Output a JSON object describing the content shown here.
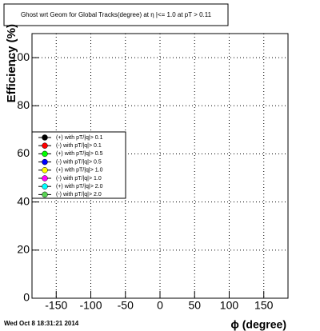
{
  "chart_data": {
    "type": "scatter",
    "title": "Ghost wrt Geom for Global Tracks(degree) at η |<= 1.0 at pT > 0.11",
    "x_label": "ϕ (degree)",
    "y_label": "Efficiency (%)",
    "timestamp": "Wed Oct  8 18:31:21 2014",
    "xlim": [
      -185,
      185
    ],
    "xticks": [
      -150,
      -100,
      -50,
      0,
      50,
      100,
      150
    ],
    "ylim": [
      0,
      110
    ],
    "yticks": [
      0,
      20,
      40,
      60,
      80,
      100
    ],
    "grid": true,
    "legend": "left",
    "x": [],
    "series": [
      {
        "name": "(+) with pT/|q|> 0.1",
        "color": "#000000",
        "values": []
      },
      {
        "name": "(-) with pT/|q|> 0.1",
        "color": "#ff0000",
        "values": []
      },
      {
        "name": "(+) with pT/|q|> 0.5",
        "color": "#00ff00",
        "values": []
      },
      {
        "name": "(-) with pT/|q|> 0.5",
        "color": "#0000ff",
        "values": []
      },
      {
        "name": "(+) with pT/|q|> 1.0",
        "color": "#ffff00",
        "values": []
      },
      {
        "name": "(-) with pT/|q|> 1.0",
        "color": "#ff00ff",
        "values": []
      },
      {
        "name": "(+) with pT/|q|> 2.0",
        "color": "#00ffff",
        "values": []
      },
      {
        "name": "(-) with pT/|q|> 2.0",
        "color": "#59d454",
        "values": []
      }
    ]
  }
}
